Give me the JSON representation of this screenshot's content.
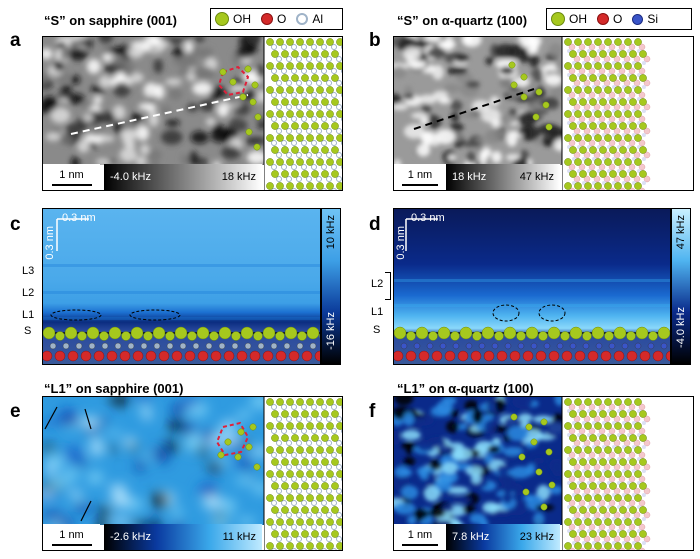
{
  "panels": {
    "a": {
      "letter": "a",
      "title": "“S” on sapphire (001)",
      "scale": "1 nm",
      "cmin": "-4.0 kHz",
      "cmax": "18 kHz"
    },
    "b": {
      "letter": "b",
      "title": "“S” on α-quartz (100)",
      "scale": "1 nm",
      "cmin": "18 kHz",
      "cmax": "47 kHz"
    },
    "c": {
      "letter": "c",
      "scale": "0.3 nm",
      "scale_v": "0.3 nm",
      "cmax": "10 kHz",
      "cmin": "-16 kHz",
      "layers": [
        "L3",
        "L2",
        "L1",
        "S"
      ]
    },
    "d": {
      "letter": "d",
      "scale": "0.3 nm",
      "scale_v": "0.3 nm",
      "cmax": "47 kHz",
      "cmin": "-4.0 kHz",
      "layers": [
        "L2",
        "L1",
        "S"
      ]
    },
    "e": {
      "letter": "e",
      "title": "“L1” on sapphire (001)",
      "scale": "1 nm",
      "cmin": "-2.6 kHz",
      "cmax": "11 kHz"
    },
    "f": {
      "letter": "f",
      "title": "“L1” on α-quartz (100)",
      "scale": "1 nm",
      "cmin": "7.8 kHz",
      "cmax": "23 kHz"
    }
  },
  "legend_a": {
    "oh": "OH",
    "o": "O",
    "al": "Al"
  },
  "legend_b": {
    "oh": "OH",
    "o": "O",
    "si": "Si"
  },
  "colors": {
    "oh": "#a6c81e",
    "o": "#d42a2a",
    "al": "#9fb3c8",
    "si": "#3a55c8",
    "ring": "#e0203a"
  }
}
